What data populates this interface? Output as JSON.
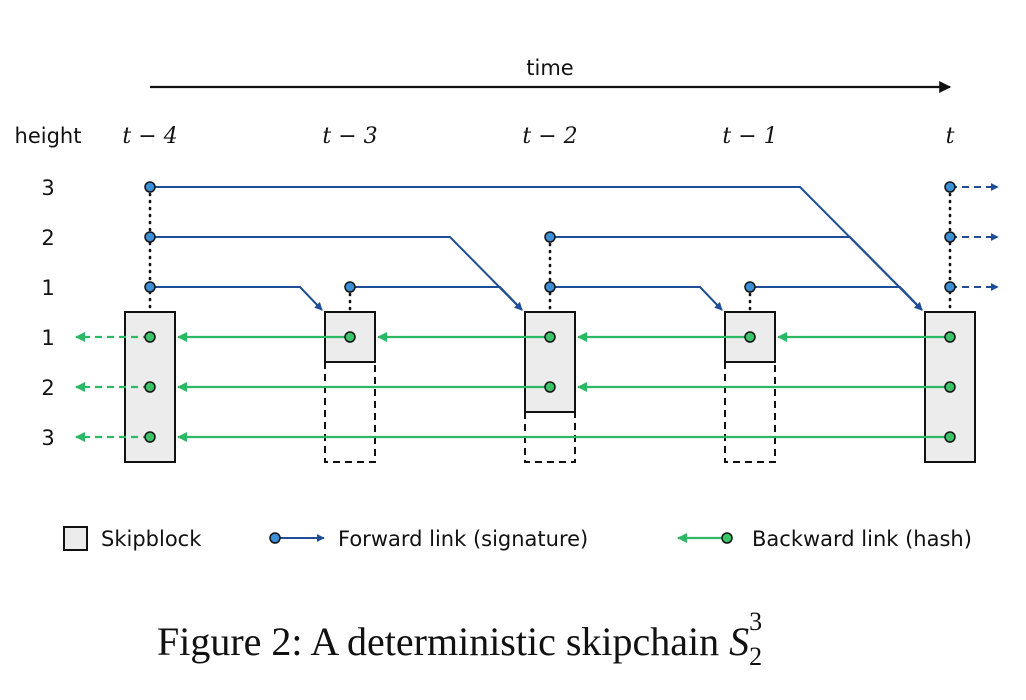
{
  "axis": {
    "time_label": "time",
    "height_label": "height"
  },
  "time_labels": [
    "t − 4",
    "t − 3",
    "t − 2",
    "t − 1",
    "t"
  ],
  "forward_heights": [
    "3",
    "2",
    "1"
  ],
  "backward_heights": [
    "1",
    "2",
    "3"
  ],
  "legend": {
    "skipblock": "Skipblock",
    "forward": "Forward link (signature)",
    "backward": "Backward link (hash)"
  },
  "caption": {
    "prefix": "Figure 2: A deterministic skipchain ",
    "symbol": "S",
    "sub": "2",
    "sup": "3"
  },
  "colors": {
    "forward": "#1f4e96",
    "forward_dot": "#3b8fd6",
    "backward": "#2db866",
    "backward_dot": "#3cc46a",
    "block_fill": "#ececec"
  },
  "blocks": [
    {
      "label": "t − 4",
      "height": 3
    },
    {
      "label": "t − 3",
      "height": 1
    },
    {
      "label": "t − 2",
      "height": 2
    },
    {
      "label": "t − 1",
      "height": 1
    },
    {
      "label": "t",
      "height": 3
    }
  ]
}
